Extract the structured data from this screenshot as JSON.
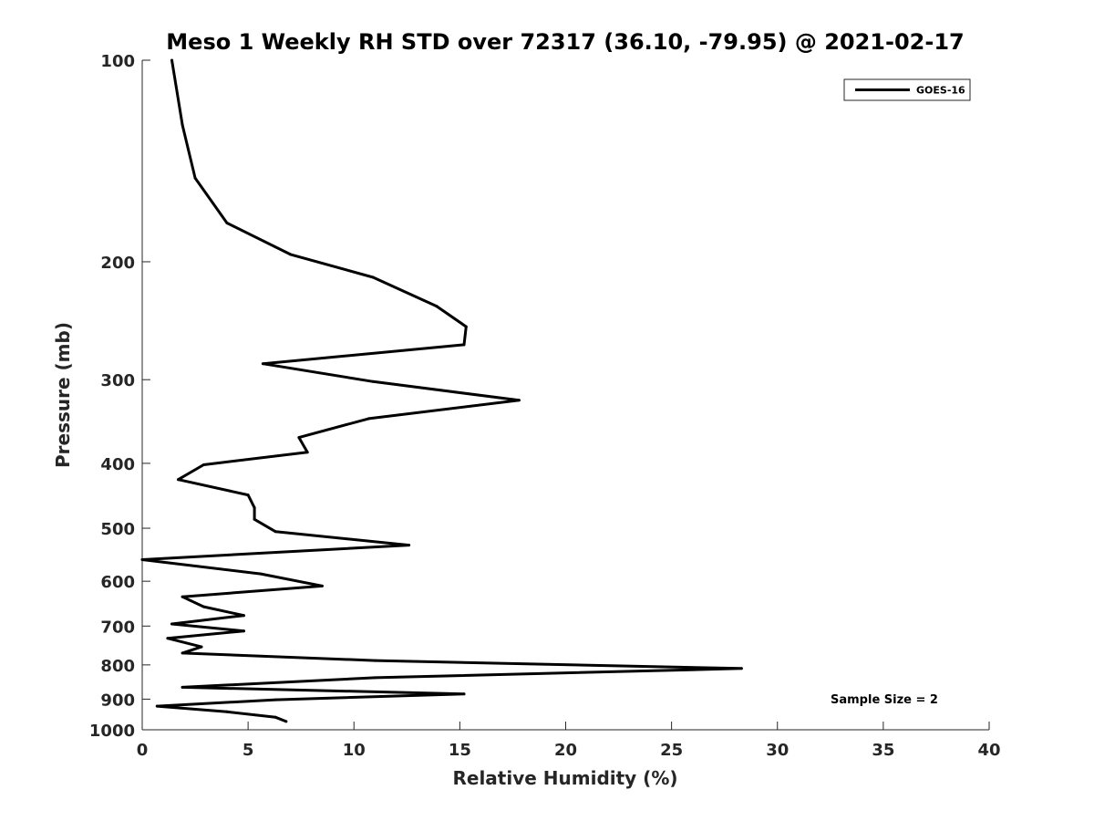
{
  "chart_data": {
    "type": "line",
    "title": "Meso 1 Weekly RH STD over 72317 (36.10, -79.95) @ 2021-02-17",
    "xlabel": "Relative Humidity (%)",
    "ylabel": "Pressure (mb)",
    "xlim": [
      0,
      40
    ],
    "ylim": [
      100,
      1000
    ],
    "y_scale": "log",
    "y_reversed": true,
    "x_ticks": [
      "0",
      "5",
      "10",
      "15",
      "20",
      "25",
      "30",
      "35",
      "40"
    ],
    "y_ticks": [
      "100",
      "200",
      "300",
      "400",
      "500",
      "600",
      "700",
      "800",
      "900",
      "1000"
    ],
    "grid": false,
    "legend_position": "top-right",
    "annotation": "Sample Size = 2",
    "series": [
      {
        "name": "GOES-16",
        "color": "#000000",
        "points": [
          [
            1.4,
            100
          ],
          [
            1.9,
            125
          ],
          [
            2.5,
            150
          ],
          [
            4.0,
            175
          ],
          [
            7.0,
            195
          ],
          [
            10.9,
            211
          ],
          [
            13.9,
            233
          ],
          [
            15.3,
            250
          ],
          [
            15.2,
            266
          ],
          [
            5.7,
            284
          ],
          [
            10.9,
            302
          ],
          [
            17.8,
            322
          ],
          [
            10.7,
            343
          ],
          [
            7.4,
            366
          ],
          [
            7.8,
            385
          ],
          [
            2.9,
            402
          ],
          [
            1.7,
            423
          ],
          [
            5.0,
            446
          ],
          [
            5.3,
            466
          ],
          [
            5.3,
            485
          ],
          [
            6.3,
            506
          ],
          [
            12.6,
            530
          ],
          [
            0.0,
            557
          ],
          [
            5.6,
            585
          ],
          [
            8.5,
            610
          ],
          [
            1.9,
            633
          ],
          [
            2.9,
            655
          ],
          [
            4.8,
            675
          ],
          [
            1.4,
            695
          ],
          [
            4.8,
            712
          ],
          [
            1.2,
            730
          ],
          [
            2.8,
            752
          ],
          [
            1.9,
            768
          ],
          [
            11.0,
            788
          ],
          [
            28.3,
            810
          ],
          [
            11.0,
            836
          ],
          [
            1.9,
            864
          ],
          [
            15.2,
            884
          ],
          [
            6.3,
            902
          ],
          [
            0.7,
            922
          ],
          [
            4.0,
            940
          ],
          [
            6.3,
            958
          ],
          [
            6.8,
            972
          ]
        ]
      }
    ]
  }
}
